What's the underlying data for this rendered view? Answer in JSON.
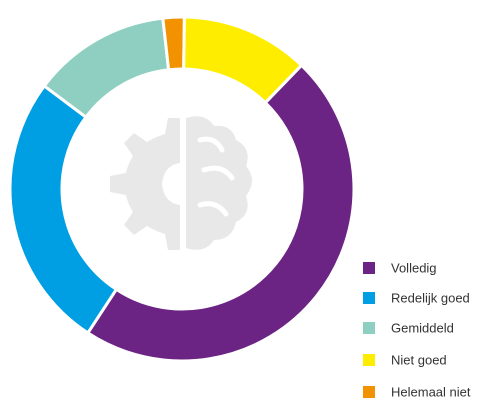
{
  "chart_data": {
    "type": "donut",
    "categories": [
      "Volledig",
      "Redelijk goed",
      "Gemiddeld",
      "Niet goed",
      "Helemaal niet"
    ],
    "values": [
      47,
      26,
      13,
      12,
      2
    ],
    "colors": [
      "#6b2483",
      "#009fe3",
      "#8fcfc1",
      "#ffed00",
      "#f39200"
    ],
    "legend": "bottom-right"
  }
}
